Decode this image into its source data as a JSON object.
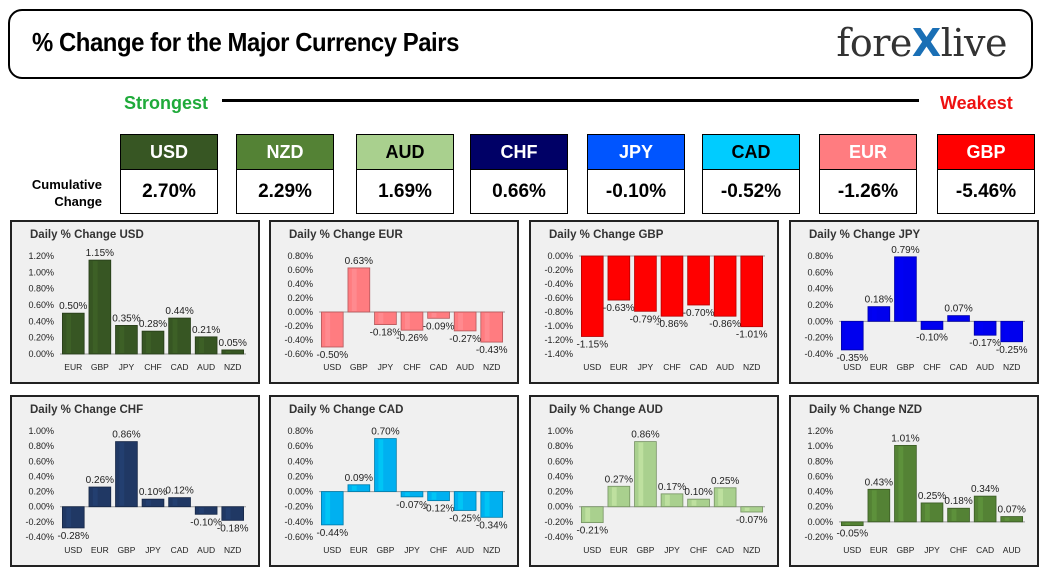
{
  "header": {
    "title": "% Change for the Major Currency Pairs",
    "logo_left": "fore",
    "logo_x": "X",
    "logo_right": "live"
  },
  "scale": {
    "strongest": "Strongest",
    "weakest": "Weakest"
  },
  "cumulative": {
    "label_line1": "Cumulative",
    "label_line2": "Change",
    "tiles": [
      {
        "code": "USD",
        "value": "2.70%",
        "bg": "#375623",
        "fg": "#ffffff"
      },
      {
        "code": "NZD",
        "value": "2.29%",
        "bg": "#548235",
        "fg": "#ffffff"
      },
      {
        "code": "AUD",
        "value": "1.69%",
        "bg": "#a9d08e",
        "fg": "#000000"
      },
      {
        "code": "CHF",
        "value": "0.66%",
        "bg": "#000066",
        "fg": "#ffffff"
      },
      {
        "code": "JPY",
        "value": "-0.10%",
        "bg": "#0055ff",
        "fg": "#ffffff"
      },
      {
        "code": "CAD",
        "value": "-0.52%",
        "bg": "#00ccff",
        "fg": "#000000"
      },
      {
        "code": "EUR",
        "value": "-1.26%",
        "bg": "#ff7c80",
        "fg": "#ffffff"
      },
      {
        "code": "GBP",
        "value": "-5.46%",
        "bg": "#ff0000",
        "fg": "#ffffff"
      }
    ]
  },
  "chart_data": [
    {
      "type": "bar",
      "title": "Daily % Change USD",
      "categories": [
        "EUR",
        "GBP",
        "JPY",
        "CHF",
        "CAD",
        "AUD",
        "NZD"
      ],
      "values": [
        0.5,
        1.15,
        0.35,
        0.28,
        0.44,
        0.21,
        0.05
      ],
      "labels": [
        "0.50%",
        "1.15%",
        "0.35%",
        "0.28%",
        "0.44%",
        "0.21%",
        "0.05%"
      ],
      "yticks": [
        "0.00%",
        "0.20%",
        "0.40%",
        "0.60%",
        "0.80%",
        "1.00%",
        "1.20%"
      ],
      "ylim": [
        0,
        1.2
      ],
      "color": "#375623"
    },
    {
      "type": "bar",
      "title": "Daily % Change EUR",
      "categories": [
        "USD",
        "GBP",
        "JPY",
        "CHF",
        "CAD",
        "AUD",
        "NZD"
      ],
      "values": [
        -0.5,
        0.63,
        -0.18,
        -0.26,
        -0.09,
        -0.27,
        -0.43
      ],
      "labels": [
        "-0.50%",
        "0.63%",
        "-0.18%",
        "-0.26%",
        "-0.09%",
        "-0.27%",
        "-0.43%"
      ],
      "yticks": [
        "-0.60%",
        "-0.40%",
        "-0.20%",
        "0.00%",
        "0.20%",
        "0.40%",
        "0.60%",
        "0.80%"
      ],
      "ylim": [
        -0.6,
        0.8
      ],
      "color": "#ff7c80"
    },
    {
      "type": "bar",
      "title": "Daily % Change GBP",
      "categories": [
        "USD",
        "EUR",
        "JPY",
        "CHF",
        "CAD",
        "AUD",
        "NZD"
      ],
      "values": [
        -1.15,
        -0.63,
        -0.79,
        -0.86,
        -0.7,
        -0.86,
        -1.01
      ],
      "labels": [
        "-1.15%",
        "-0.63%",
        "-0.79%",
        "-0.86%",
        "-0.70%",
        "-0.86%",
        "-1.01%"
      ],
      "yticks": [
        "-1.40%",
        "-1.20%",
        "-1.00%",
        "-0.80%",
        "-0.60%",
        "-0.40%",
        "-0.20%",
        "0.00%"
      ],
      "ylim": [
        -1.4,
        0
      ],
      "color": "#ff0000"
    },
    {
      "type": "bar",
      "title": "Daily % Change JPY",
      "categories": [
        "USD",
        "EUR",
        "GBP",
        "CHF",
        "CAD",
        "AUD",
        "NZD"
      ],
      "values": [
        -0.35,
        0.18,
        0.79,
        -0.1,
        0.07,
        -0.17,
        -0.25
      ],
      "labels": [
        "-0.35%",
        "0.18%",
        "0.79%",
        "-0.10%",
        "0.07%",
        "-0.17%",
        "-0.25%"
      ],
      "yticks": [
        "-0.40%",
        "-0.20%",
        "0.00%",
        "0.20%",
        "0.40%",
        "0.60%",
        "0.80%"
      ],
      "ylim": [
        -0.4,
        0.8
      ],
      "color": "#0000ee"
    },
    {
      "type": "bar",
      "title": "Daily % Change CHF",
      "categories": [
        "USD",
        "EUR",
        "GBP",
        "JPY",
        "CAD",
        "AUD",
        "NZD"
      ],
      "values": [
        -0.28,
        0.26,
        0.86,
        0.1,
        0.12,
        -0.1,
        -0.18
      ],
      "labels": [
        "-0.28%",
        "0.26%",
        "0.86%",
        "0.10%",
        "0.12%",
        "-0.10%",
        "-0.18%"
      ],
      "yticks": [
        "-0.40%",
        "-0.20%",
        "0.00%",
        "0.20%",
        "0.40%",
        "0.60%",
        "0.80%",
        "1.00%"
      ],
      "ylim": [
        -0.4,
        1.0
      ],
      "color": "#203864"
    },
    {
      "type": "bar",
      "title": "Daily % Change CAD",
      "categories": [
        "USD",
        "EUR",
        "GBP",
        "JPY",
        "CHF",
        "AUD",
        "NZD"
      ],
      "values": [
        -0.44,
        0.09,
        0.7,
        -0.07,
        -0.12,
        -0.25,
        -0.34
      ],
      "labels": [
        "-0.44%",
        "0.09%",
        "0.70%",
        "-0.07%",
        "-0.12%",
        "-0.25%",
        "-0.34%"
      ],
      "yticks": [
        "-0.60%",
        "-0.40%",
        "-0.20%",
        "0.00%",
        "0.20%",
        "0.40%",
        "0.60%",
        "0.80%"
      ],
      "ylim": [
        -0.6,
        0.8
      ],
      "color": "#00b0f0"
    },
    {
      "type": "bar",
      "title": "Daily % Change AUD",
      "categories": [
        "USD",
        "EUR",
        "GBP",
        "JPY",
        "CHF",
        "CAD",
        "NZD"
      ],
      "values": [
        -0.21,
        0.27,
        0.86,
        0.17,
        0.1,
        0.25,
        -0.07
      ],
      "labels": [
        "-0.21%",
        "0.27%",
        "0.86%",
        "0.17%",
        "0.10%",
        "0.25%",
        "-0.07%"
      ],
      "yticks": [
        "-0.40%",
        "-0.20%",
        "0.00%",
        "0.20%",
        "0.40%",
        "0.60%",
        "0.80%",
        "1.00%"
      ],
      "ylim": [
        -0.4,
        1.0
      ],
      "color": "#a9d08e"
    },
    {
      "type": "bar",
      "title": "Daily % Change NZD",
      "categories": [
        "USD",
        "EUR",
        "GBP",
        "JPY",
        "CHF",
        "CAD",
        "AUD"
      ],
      "values": [
        -0.05,
        0.43,
        1.01,
        0.25,
        0.18,
        0.34,
        0.07
      ],
      "labels": [
        "-0.05%",
        "0.43%",
        "1.01%",
        "0.25%",
        "0.18%",
        "0.34%",
        "0.07%"
      ],
      "yticks": [
        "-0.20%",
        "0.00%",
        "0.20%",
        "0.40%",
        "0.60%",
        "0.80%",
        "1.00%",
        "1.20%"
      ],
      "ylim": [
        -0.2,
        1.2
      ],
      "color": "#548235"
    }
  ]
}
